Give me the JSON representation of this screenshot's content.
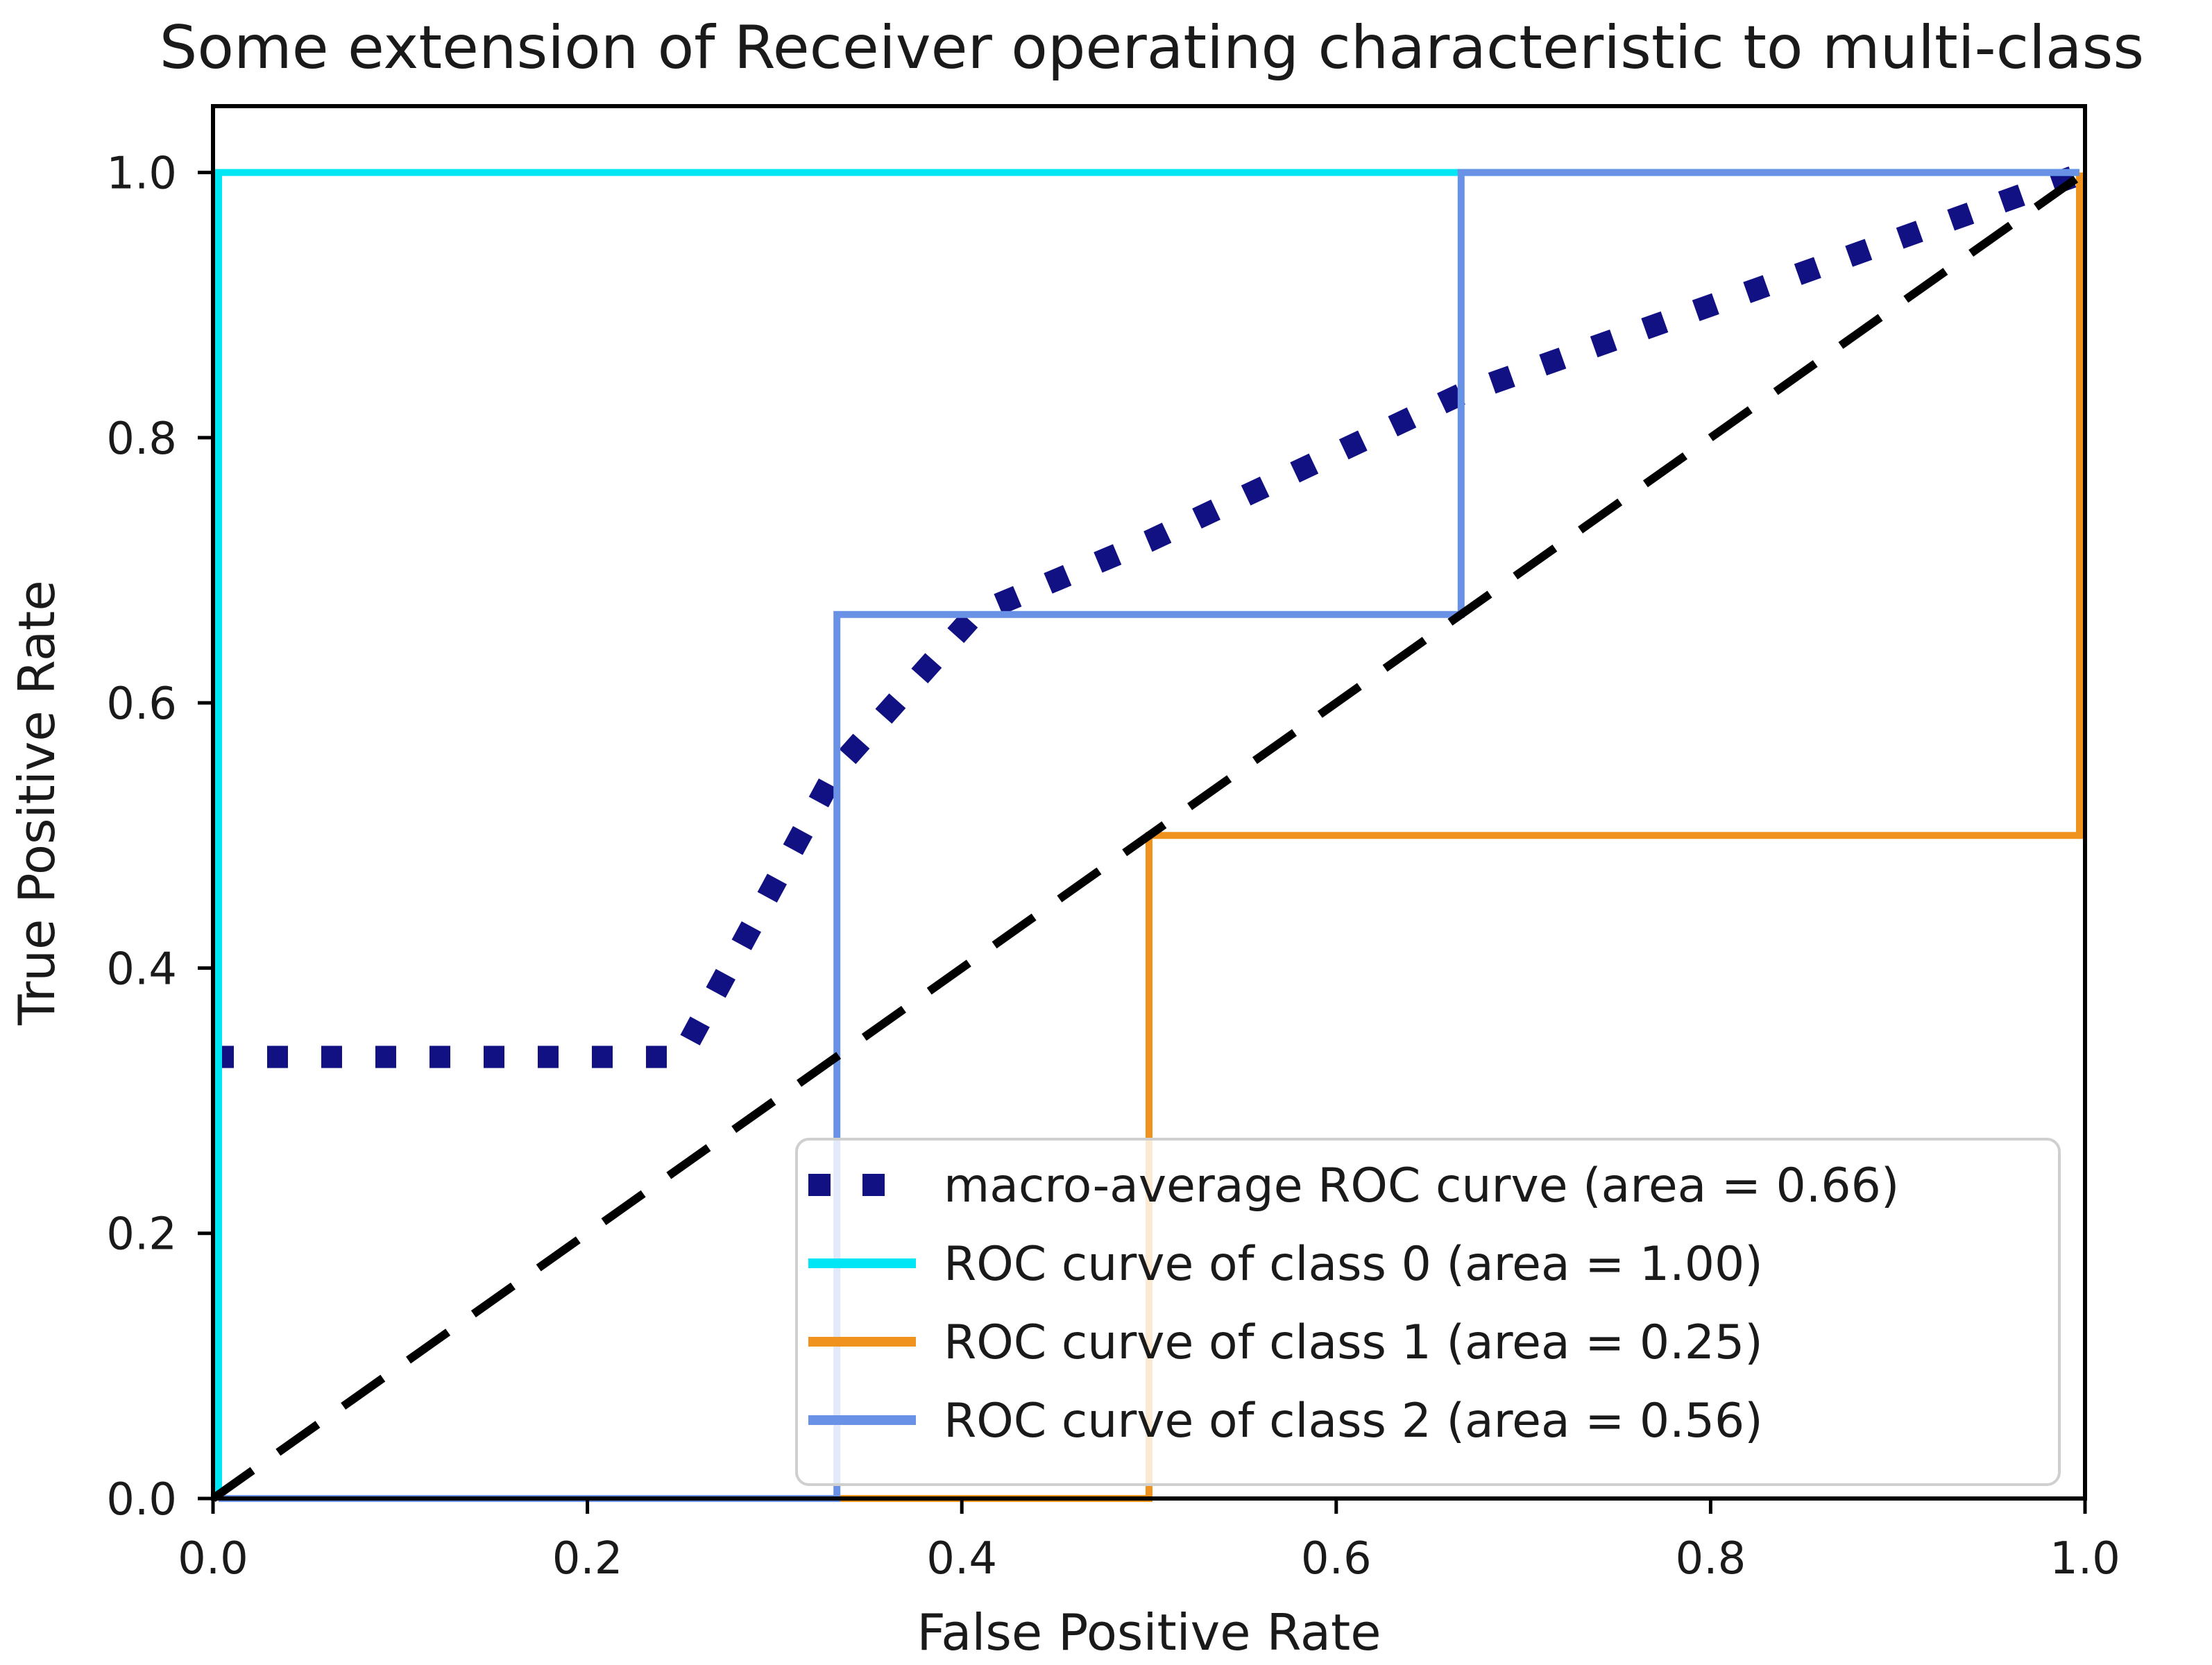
{
  "chart_data": {
    "type": "line",
    "title": "Some extension of Receiver operating characteristic to multi-class",
    "xlabel": "False Positive Rate",
    "ylabel": "True Positive Rate",
    "xlim": [
      0.0,
      1.0
    ],
    "ylim": [
      0.0,
      1.05
    ],
    "x_ticks": [
      "0.0",
      "0.2",
      "0.4",
      "0.6",
      "0.8",
      "1.0"
    ],
    "y_ticks": [
      "0.0",
      "0.2",
      "0.4",
      "0.6",
      "0.8",
      "1.0"
    ],
    "grid": false,
    "legend_position": "lower right",
    "series": [
      {
        "name": "macro-average",
        "label": "macro-average ROC curve (area = 0.66)",
        "area": 0.66,
        "color": "#111183",
        "style": "dotted",
        "width": 32,
        "points": [
          [
            0,
            0.333
          ],
          [
            0.25,
            0.333
          ],
          [
            0.333,
            0.55
          ],
          [
            0.407,
            0.667
          ],
          [
            0.5,
            0.722
          ],
          [
            0.667,
            0.833
          ],
          [
            1,
            1
          ]
        ]
      },
      {
        "name": "class-0",
        "label": "ROC curve of class 0 (area = 1.00)",
        "area": 1.0,
        "color": "#00e6f5",
        "style": "solid",
        "width": 10,
        "edge_inset": 8,
        "points": [
          [
            0,
            0
          ],
          [
            0,
            1
          ],
          [
            1,
            1
          ]
        ]
      },
      {
        "name": "class-1",
        "label": "ROC curve of class 1 (area = 0.25)",
        "area": 0.25,
        "color": "#f0921e",
        "style": "solid",
        "width": 10,
        "edge_inset": 8,
        "points": [
          [
            0,
            0
          ],
          [
            0.5,
            0
          ],
          [
            0.5,
            0.5
          ],
          [
            1,
            0.5
          ],
          [
            1,
            1
          ]
        ]
      },
      {
        "name": "class-2",
        "label": "ROC curve of class 2 (area = 0.56)",
        "area": 0.56,
        "color": "#6991e6",
        "style": "solid",
        "width": 10,
        "edge_inset": 8,
        "points": [
          [
            0,
            0
          ],
          [
            0.3333,
            0
          ],
          [
            0.3333,
            0.6667
          ],
          [
            0.6667,
            0.6667
          ],
          [
            0.6667,
            1
          ],
          [
            1,
            1
          ]
        ]
      }
    ],
    "reference_line": {
      "name": "chance-diagonal",
      "color": "#000000",
      "style": "dashed",
      "width": 12,
      "points": [
        [
          0,
          0
        ],
        [
          1,
          1
        ]
      ]
    },
    "colors": {
      "frame": "#000000",
      "legend_border": "#cfcfcf",
      "legend_background": "rgba(255,255,255,0.8)",
      "text": "#1a1a1a"
    }
  }
}
